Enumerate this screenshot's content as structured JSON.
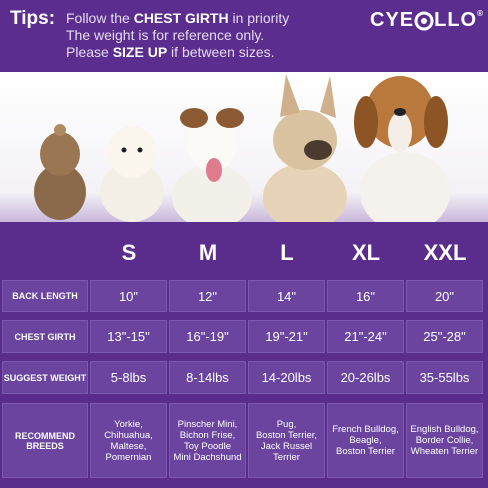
{
  "tips": {
    "label": "Tips:",
    "line1": {
      "before": "Follow the ",
      "bold": "CHEST GIRTH",
      "after": " in priority"
    },
    "line2": "The weight is for reference only.",
    "line3": {
      "before": "Please ",
      "bold": "SIZE UP",
      "after": " if between sizes."
    }
  },
  "logo": {
    "left": "CYE",
    "right": "LLO",
    "mark": "®"
  },
  "table": {
    "sizes": [
      "S",
      "M",
      "L",
      "XL",
      "XXL"
    ],
    "rows": [
      {
        "label": "BACK  LENGTH",
        "cells": [
          "10\"",
          "12\"",
          "14\"",
          "16\"",
          "20\""
        ]
      },
      {
        "label": "CHEST GIRTH",
        "cells": [
          "13\"-15\"",
          "16\"-19\"",
          "19\"-21\"",
          "21\"-24\"",
          "25\"-28\""
        ]
      },
      {
        "label": "SUGGEST WEIGHT",
        "cells": [
          "5-8lbs",
          "8-14lbs",
          "14-20lbs",
          "20-26lbs",
          "35-55lbs"
        ]
      },
      {
        "label": "RECOMMEND\nBREEDS",
        "cells": [
          "Yorkie,\nChihuahua,\nMaltese,\nPomernian",
          "Pinscher Mini,\nBichon Frise,\nToy Poodle\nMini Dachshund",
          "Pug,\nBoston Terrier,\nJack Russel\nTerrier",
          "French Bulldog,\nBeagle,\nBoston Terrier",
          "English Bulldog,\nBorder Collie,\nWheaten Terrier"
        ]
      }
    ]
  }
}
